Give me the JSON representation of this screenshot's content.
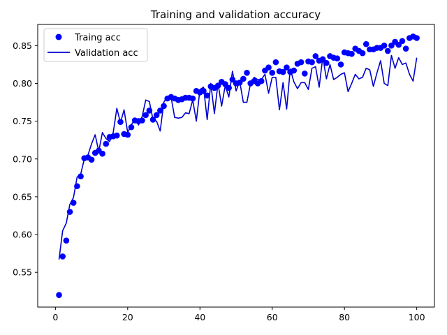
{
  "chart_data": {
    "type": "line",
    "title": "Training and validation accuracy",
    "xlabel": "",
    "ylabel": "",
    "xlim": [
      -4.9,
      104.9
    ],
    "ylim": [
      0.504,
      0.878
    ],
    "xticks": [
      0,
      20,
      40,
      60,
      80,
      100
    ],
    "yticks": [
      0.55,
      0.6,
      0.65,
      0.7,
      0.75,
      0.8,
      0.85
    ],
    "ytick_labels": [
      "0.55",
      "0.60",
      "0.65",
      "0.70",
      "0.75",
      "0.80",
      "0.85"
    ],
    "grid": false,
    "legend_position": "upper-left",
    "series": [
      {
        "name": "Traing acc",
        "style": "points",
        "color": "#0000ff",
        "x": [
          1,
          2,
          3,
          4,
          5,
          6,
          7,
          8,
          9,
          10,
          11,
          12,
          13,
          14,
          15,
          16,
          17,
          18,
          19,
          20,
          21,
          22,
          23,
          24,
          25,
          26,
          27,
          28,
          29,
          30,
          31,
          32,
          33,
          34,
          35,
          36,
          37,
          38,
          39,
          40,
          41,
          42,
          43,
          44,
          45,
          46,
          47,
          48,
          49,
          50,
          51,
          52,
          53,
          54,
          55,
          56,
          57,
          58,
          59,
          60,
          61,
          62,
          63,
          64,
          65,
          66,
          67,
          68,
          69,
          70,
          71,
          72,
          73,
          74,
          75,
          76,
          77,
          78,
          79,
          80,
          81,
          82,
          83,
          84,
          85,
          86,
          87,
          88,
          89,
          90,
          91,
          92,
          93,
          94,
          95,
          96,
          97,
          98,
          99,
          100
        ],
        "values": [
          0.52,
          0.571,
          0.592,
          0.63,
          0.642,
          0.664,
          0.677,
          0.701,
          0.702,
          0.699,
          0.708,
          0.711,
          0.707,
          0.72,
          0.729,
          0.73,
          0.731,
          0.749,
          0.733,
          0.732,
          0.742,
          0.751,
          0.75,
          0.751,
          0.758,
          0.764,
          0.752,
          0.758,
          0.764,
          0.77,
          0.78,
          0.782,
          0.78,
          0.778,
          0.779,
          0.781,
          0.781,
          0.78,
          0.79,
          0.788,
          0.79,
          0.784,
          0.796,
          0.794,
          0.797,
          0.802,
          0.799,
          0.794,
          0.805,
          0.8,
          0.801,
          0.806,
          0.814,
          0.8,
          0.803,
          0.8,
          0.803,
          0.817,
          0.821,
          0.814,
          0.828,
          0.816,
          0.815,
          0.821,
          0.815,
          0.817,
          0.826,
          0.828,
          0.813,
          0.829,
          0.828,
          0.836,
          0.83,
          0.832,
          0.827,
          0.836,
          0.834,
          0.833,
          0.825,
          0.841,
          0.84,
          0.839,
          0.846,
          0.843,
          0.84,
          0.852,
          0.845,
          0.845,
          0.847,
          0.847,
          0.85,
          0.843,
          0.85,
          0.855,
          0.851,
          0.856,
          0.846,
          0.86,
          0.862,
          0.86
        ]
      },
      {
        "name": "Validation acc",
        "style": "line",
        "color": "#0000cd",
        "x": [
          1,
          2,
          3,
          4,
          5,
          6,
          7,
          8,
          9,
          10,
          11,
          12,
          13,
          14,
          15,
          16,
          17,
          18,
          19,
          20,
          21,
          22,
          23,
          24,
          25,
          26,
          27,
          28,
          29,
          30,
          31,
          32,
          33,
          34,
          35,
          36,
          37,
          38,
          39,
          40,
          41,
          42,
          43,
          44,
          45,
          46,
          47,
          48,
          49,
          50,
          51,
          52,
          53,
          54,
          55,
          56,
          57,
          58,
          59,
          60,
          61,
          62,
          63,
          64,
          65,
          66,
          67,
          68,
          69,
          70,
          71,
          72,
          73,
          74,
          75,
          76,
          77,
          78,
          79,
          80,
          81,
          82,
          83,
          84,
          85,
          86,
          87,
          88,
          89,
          90,
          91,
          92,
          93,
          94,
          95,
          96,
          97,
          98,
          99,
          100
        ],
        "values": [
          0.567,
          0.605,
          0.615,
          0.64,
          0.649,
          0.676,
          0.68,
          0.7,
          0.705,
          0.72,
          0.732,
          0.71,
          0.735,
          0.727,
          0.723,
          0.735,
          0.767,
          0.748,
          0.765,
          0.735,
          0.745,
          0.753,
          0.745,
          0.756,
          0.778,
          0.776,
          0.752,
          0.75,
          0.737,
          0.775,
          0.783,
          0.782,
          0.755,
          0.754,
          0.755,
          0.761,
          0.76,
          0.778,
          0.75,
          0.792,
          0.795,
          0.752,
          0.8,
          0.76,
          0.8,
          0.77,
          0.797,
          0.782,
          0.816,
          0.79,
          0.803,
          0.775,
          0.775,
          0.8,
          0.808,
          0.805,
          0.805,
          0.812,
          0.787,
          0.808,
          0.808,
          0.765,
          0.801,
          0.766,
          0.819,
          0.802,
          0.793,
          0.801,
          0.801,
          0.792,
          0.82,
          0.822,
          0.795,
          0.835,
          0.806,
          0.825,
          0.805,
          0.808,
          0.812,
          0.814,
          0.789,
          0.8,
          0.812,
          0.806,
          0.808,
          0.82,
          0.818,
          0.796,
          0.814,
          0.83,
          0.8,
          0.797,
          0.837,
          0.82,
          0.834,
          0.825,
          0.827,
          0.812,
          0.803,
          0.834
        ]
      }
    ]
  }
}
